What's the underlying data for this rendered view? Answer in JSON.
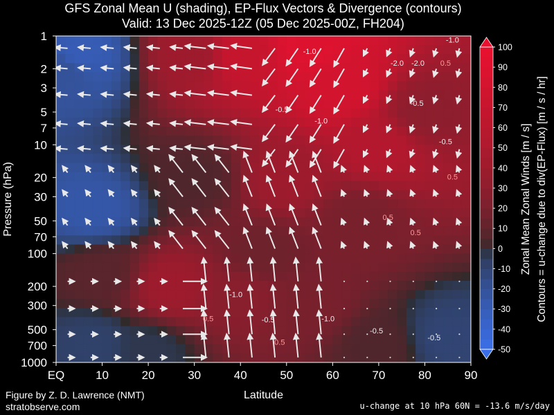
{
  "header": {
    "title_line1": "GFS Zonal Mean U (shading), EP-Flux Vectors & Divergence (contours)",
    "title_line2": "Valid: 13 Dec 2025-12Z  (05 Dec 2025-00Z, FH204)"
  },
  "footer": {
    "credit_line1": "Figure by Z. D. Lawrence (NMT)",
    "credit_line2": "stratobserve.com",
    "u_change": "u-change at 10 hPa 60N = -13.6 m/s/day"
  },
  "chart_data": {
    "type": "heatmap",
    "xlabel": "Latitude",
    "ylabel": "Pressure (hPa)",
    "xlim": [
      0,
      90
    ],
    "ylim": [
      1000,
      1
    ],
    "y_scale": "log",
    "x_ticks": [
      0,
      10,
      20,
      30,
      40,
      50,
      60,
      70,
      80,
      90
    ],
    "x_tick_labels": [
      "EQ",
      "10",
      "20",
      "30",
      "40",
      "50",
      "60",
      "70",
      "80",
      "90"
    ],
    "y_ticks": [
      1,
      2,
      3,
      5,
      7,
      10,
      20,
      30,
      50,
      70,
      100,
      200,
      300,
      500,
      700,
      1000
    ],
    "colorbar": {
      "label_line1": "Zonal Mean Zonal Winds  [m / s]",
      "label_line2": "Contours = u-change due to div(EP-Flux) [m / s / hr]",
      "ticks": [
        100,
        90,
        80,
        70,
        60,
        50,
        40,
        30,
        20,
        10,
        0,
        -10,
        -20,
        -30,
        -40,
        -50
      ],
      "range": [
        -50,
        100
      ],
      "colors": {
        "neg_max": "#3a6ee8",
        "zero": "#2b2b2b",
        "pos_max": "#e8112f"
      }
    },
    "wind_field": [
      {
        "lat": 5,
        "p": 1.5,
        "u": -30
      },
      {
        "lat": 8,
        "p": 40,
        "u": -25
      },
      {
        "lat": 2,
        "p": 2,
        "u": -20
      },
      {
        "lat": 30,
        "p": 1.5,
        "u": 40
      },
      {
        "lat": 40,
        "p": 1.5,
        "u": 70
      },
      {
        "lat": 55,
        "p": 1.2,
        "u": 90
      },
      {
        "lat": 62,
        "p": 3,
        "u": 80
      },
      {
        "lat": 70,
        "p": 10,
        "u": 55
      },
      {
        "lat": 80,
        "p": 5,
        "u": 30
      },
      {
        "lat": 50,
        "p": 20,
        "u": 40
      },
      {
        "lat": 30,
        "p": 20,
        "u": 5
      },
      {
        "lat": 25,
        "p": 200,
        "u": 40
      },
      {
        "lat": 40,
        "p": 250,
        "u": 28
      },
      {
        "lat": 55,
        "p": 300,
        "u": 20
      },
      {
        "lat": 70,
        "p": 700,
        "u": 5
      },
      {
        "lat": 8,
        "p": 700,
        "u": -8
      },
      {
        "lat": 10,
        "p": 150,
        "u": 8
      },
      {
        "lat": 20,
        "p": 800,
        "u": -3
      },
      {
        "lat": 85,
        "p": 600,
        "u": -10
      },
      {
        "lat": 45,
        "p": 100,
        "u": 15
      },
      {
        "lat": 65,
        "p": 50,
        "u": 20
      }
    ],
    "contour_labels": [
      {
        "text": "-1.0",
        "lat": 55,
        "p": 1.4
      },
      {
        "text": "-2.0",
        "lat": 74,
        "p": 1.8
      },
      {
        "text": "-2.0",
        "lat": 78.5,
        "p": 1.8
      },
      {
        "text": "0.5",
        "lat": 84.5,
        "p": 1.8
      },
      {
        "text": "-1.0",
        "lat": 86,
        "p": 1.1
      },
      {
        "text": "-0.5",
        "lat": 49,
        "p": 4.8
      },
      {
        "text": "-1.0",
        "lat": 57.5,
        "p": 6.1
      },
      {
        "text": "-0.5",
        "lat": 78.3,
        "p": 4.2
      },
      {
        "text": "-0.5",
        "lat": 84.5,
        "p": 9.5
      },
      {
        "text": "0.5",
        "lat": 86,
        "p": 20
      },
      {
        "text": "0.5",
        "lat": 72,
        "p": 47
      },
      {
        "text": "0.5",
        "lat": 78,
        "p": 65
      },
      {
        "text": "-1.0",
        "lat": 39,
        "p": 240
      },
      {
        "text": "-0.5",
        "lat": 46,
        "p": 410
      },
      {
        "text": "-1.0",
        "lat": 59,
        "p": 400
      },
      {
        "text": "-0.5",
        "lat": 69.5,
        "p": 520
      },
      {
        "text": "0.5",
        "lat": 33,
        "p": 400
      },
      {
        "text": "0.5",
        "lat": 48.5,
        "p": 660
      },
      {
        "text": "-0.5",
        "lat": 82,
        "p": 600
      }
    ]
  }
}
